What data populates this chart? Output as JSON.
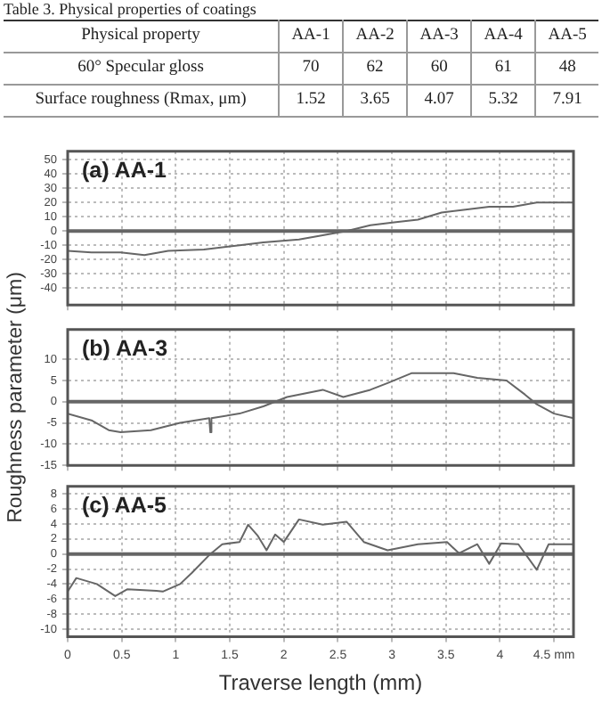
{
  "chart_data": [
    {
      "type": "heatmap",
      "title": "Table 3. Physical properties of coatings",
      "ylabel": "Physical property",
      "categories": [
        "AA-1",
        "AA-2",
        "AA-3",
        "AA-4",
        "AA-5"
      ],
      "y_categories": [
        "60° Specular gloss",
        "Surface roughness (Rmax, μm)"
      ],
      "cells": [
        [
          70,
          62,
          60,
          61,
          48
        ],
        [
          1.52,
          3.65,
          4.07,
          5.32,
          7.91
        ]
      ],
      "data_labels": true
    },
    {
      "type": "line",
      "annotations": [
        "(a) AA-1"
      ],
      "xlim": [
        0,
        4.68
      ],
      "xticks": [
        0,
        0.5,
        1,
        1.5,
        2,
        2.5,
        3,
        3.5,
        4,
        4.5
      ],
      "ylim": [
        -52,
        56
      ],
      "yticks": [
        -40,
        -30,
        -20,
        -10,
        0,
        10,
        20,
        30,
        40,
        50
      ],
      "tick_labels": "y",
      "grid": true,
      "marker": "none",
      "line_style": "solid",
      "ref_lines": [
        {
          "axis": "y",
          "value": 0,
          "color": "#666666"
        }
      ],
      "series": [
        {
          "color": "#666666",
          "x": [
            0,
            0.22,
            0.49,
            0.71,
            0.93,
            1.26,
            1.59,
            1.81,
            2.14,
            2.36,
            2.58,
            2.8,
            3.02,
            3.24,
            3.46,
            3.68,
            3.9,
            4.12,
            4.34,
            4.68
          ],
          "values": [
            -14,
            -15,
            -15,
            -17,
            -14,
            -13,
            -10,
            -8,
            -6,
            -3,
            0,
            4,
            6,
            8,
            13,
            15,
            17,
            17,
            20,
            20
          ]
        }
      ]
    },
    {
      "type": "line",
      "annotations": [
        "(b) AA-3"
      ],
      "ylabel": "Roughness parameter (μm)",
      "xlim": [
        0,
        4.68
      ],
      "xticks": [
        0,
        0.5,
        1,
        1.5,
        2,
        2.5,
        3,
        3.5,
        4,
        4.5
      ],
      "ylim": [
        -15,
        17
      ],
      "yticks": [
        -15,
        -10,
        -5,
        0,
        5,
        10
      ],
      "tick_labels": "y",
      "grid": true,
      "marker": "none",
      "line_style": "solid",
      "ref_lines": [
        {
          "axis": "y",
          "value": 0,
          "color": "#666666"
        }
      ],
      "series": [
        {
          "color": "#666666",
          "x": [
            0,
            0.22,
            0.38,
            0.49,
            0.77,
            1.04,
            1.31,
            1.32,
            1.33,
            1.59,
            1.81,
            2.03,
            2.36,
            2.55,
            2.8,
            2.96,
            3.18,
            3.4,
            3.57,
            3.79,
            4.06,
            4.23,
            4.34,
            4.5,
            4.68
          ],
          "values": [
            -2.8,
            -4.4,
            -6.7,
            -7.2,
            -6.7,
            -5,
            -3.9,
            -7.2,
            -3.9,
            -2.8,
            -1.1,
            1.1,
            2.8,
            1.1,
            2.8,
            4.4,
            6.7,
            6.7,
            6.7,
            5.6,
            5,
            1.7,
            -0.6,
            -2.8,
            -3.9
          ]
        }
      ]
    },
    {
      "type": "line",
      "annotations": [
        "(c) AA-5"
      ],
      "xlabel": "Traverse length (mm)",
      "xlim": [
        0,
        4.68
      ],
      "xticks": [
        0,
        0.5,
        1,
        1.5,
        2,
        2.5,
        3,
        3.5,
        4,
        {
          "value": 4.5,
          "label": "4.5 mm"
        }
      ],
      "ylim": [
        -11,
        9
      ],
      "yticks": [
        -10,
        -8,
        -6,
        -4,
        -2,
        0,
        2,
        4,
        6,
        8
      ],
      "grid": true,
      "marker": "none",
      "line_style": "solid",
      "ref_lines": [
        {
          "axis": "y",
          "value": 0,
          "color": "#666666"
        }
      ],
      "series": [
        {
          "color": "#666666",
          "x": [
            0,
            0.08,
            0.27,
            0.44,
            0.55,
            0.82,
            0.88,
            1.04,
            1.15,
            1.32,
            1.43,
            1.59,
            1.67,
            1.76,
            1.84,
            1.92,
            2,
            2.14,
            2.36,
            2.58,
            2.74,
            2.96,
            3.24,
            3.51,
            3.62,
            3.79,
            3.9,
            4.01,
            4.17,
            4.34,
            4.45,
            4.68
          ],
          "values": [
            -5,
            -3.2,
            -4,
            -5.6,
            -4.7,
            -4.9,
            -5,
            -4,
            -2.5,
            0,
            1.3,
            1.6,
            3.9,
            2.4,
            0.5,
            2.6,
            1.6,
            4.6,
            3.9,
            4.3,
            1.6,
            0.5,
            1.3,
            1.6,
            0.1,
            1.3,
            -1.3,
            1.4,
            1.3,
            -2.1,
            1.3,
            1.3
          ]
        }
      ]
    }
  ]
}
